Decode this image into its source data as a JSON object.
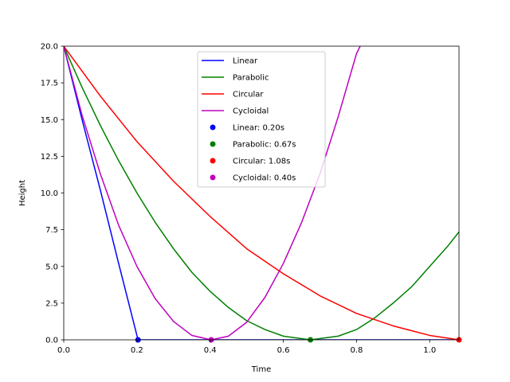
{
  "chart_data": {
    "type": "line",
    "xlabel": "Time",
    "ylabel": "Height",
    "xlim": [
      0.0,
      1.08
    ],
    "ylim": [
      0.0,
      20.0
    ],
    "x_ticks": [
      "0.0",
      "0.2",
      "0.4",
      "0.6",
      "0.8",
      "1.0"
    ],
    "x_tick_values": [
      0.0,
      0.2,
      0.4,
      0.6,
      0.8,
      1.0
    ],
    "y_ticks": [
      "0.0",
      "2.5",
      "5.0",
      "7.5",
      "10.0",
      "12.5",
      "15.0",
      "17.5",
      "20.0"
    ],
    "y_tick_values": [
      0.0,
      2.5,
      5.0,
      7.5,
      10.0,
      12.5,
      15.0,
      17.5,
      20.0
    ],
    "grid": false,
    "legend_position": "top-center",
    "series": [
      {
        "name": "Linear",
        "color": "#0000ff",
        "points": [
          [
            0.0,
            20.0
          ],
          [
            0.05,
            15.0
          ],
          [
            0.1,
            10.2
          ],
          [
            0.15,
            5.2
          ],
          [
            0.203,
            0.0
          ],
          [
            1.08,
            0.0
          ]
        ]
      },
      {
        "name": "Parabolic",
        "color": "#008000",
        "points": [
          [
            0.0,
            20.0
          ],
          [
            0.05,
            17.2
          ],
          [
            0.1,
            14.6
          ],
          [
            0.15,
            12.2
          ],
          [
            0.2,
            10.0
          ],
          [
            0.25,
            8.0
          ],
          [
            0.3,
            6.2
          ],
          [
            0.35,
            4.6
          ],
          [
            0.4,
            3.3
          ],
          [
            0.45,
            2.2
          ],
          [
            0.5,
            1.3
          ],
          [
            0.55,
            0.7
          ],
          [
            0.6,
            0.25
          ],
          [
            0.674,
            0.0
          ],
          [
            0.75,
            0.25
          ],
          [
            0.8,
            0.7
          ],
          [
            0.85,
            1.5
          ],
          [
            0.9,
            2.5
          ],
          [
            0.95,
            3.6
          ],
          [
            1.0,
            5.0
          ],
          [
            1.05,
            6.4
          ],
          [
            1.08,
            7.35
          ]
        ]
      },
      {
        "name": "Circular",
        "color": "#ff0000",
        "points": [
          [
            0.0,
            20.0
          ],
          [
            0.1,
            16.6
          ],
          [
            0.2,
            13.5
          ],
          [
            0.3,
            10.8
          ],
          [
            0.4,
            8.4
          ],
          [
            0.5,
            6.2
          ],
          [
            0.6,
            4.5
          ],
          [
            0.7,
            3.0
          ],
          [
            0.8,
            1.8
          ],
          [
            0.9,
            0.95
          ],
          [
            1.0,
            0.3
          ],
          [
            1.08,
            0.0
          ]
        ]
      },
      {
        "name": "Cycloidal",
        "color": "#bf00bf",
        "points": [
          [
            0.0,
            20.0
          ],
          [
            0.05,
            15.3
          ],
          [
            0.1,
            11.3
          ],
          [
            0.15,
            7.8
          ],
          [
            0.2,
            5.0
          ],
          [
            0.25,
            2.8
          ],
          [
            0.3,
            1.25
          ],
          [
            0.35,
            0.3
          ],
          [
            0.403,
            0.0
          ],
          [
            0.45,
            0.25
          ],
          [
            0.5,
            1.2
          ],
          [
            0.55,
            2.9
          ],
          [
            0.6,
            5.2
          ],
          [
            0.65,
            8.0
          ],
          [
            0.7,
            11.3
          ],
          [
            0.75,
            15.2
          ],
          [
            0.8,
            19.5
          ],
          [
            0.81,
            20.0
          ]
        ]
      }
    ],
    "markers": [
      {
        "name": "Linear: 0.20s",
        "color": "#0000ff",
        "x": 0.203,
        "y": 0.0
      },
      {
        "name": "Parabolic: 0.67s",
        "color": "#008000",
        "x": 0.674,
        "y": 0.0
      },
      {
        "name": "Circular: 1.08s",
        "color": "#ff0000",
        "x": 1.08,
        "y": 0.0
      },
      {
        "name": "Cycloidal: 0.40s",
        "color": "#bf00bf",
        "x": 0.403,
        "y": 0.0
      }
    ]
  }
}
